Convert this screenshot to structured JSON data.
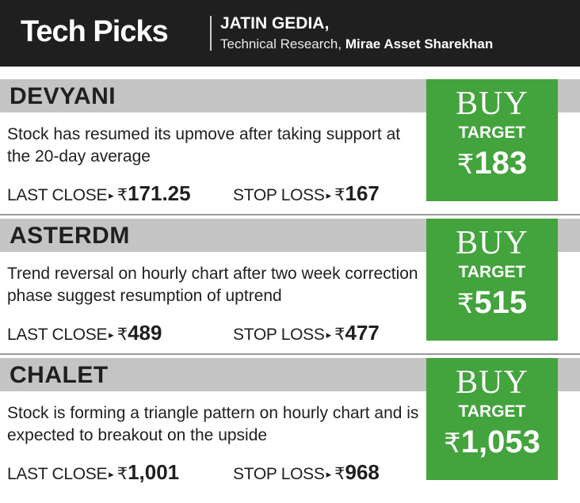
{
  "header": {
    "brand": "Tech Picks",
    "analyst_name": "JATIN GEDIA,",
    "analyst_role": "Technical  Research, ",
    "analyst_org": "Mirae Asset Sharekhan"
  },
  "labels": {
    "last_close": "LAST CLOSE",
    "stop_loss": "STOP LOSS",
    "buy": "BUY",
    "target": "TARGET",
    "rupee": "₹",
    "arrow": "▸"
  },
  "picks": [
    {
      "stock": "DEVYANI",
      "description": "Stock has resumed its upmove after taking support at the 20-day average",
      "last_close": "171.25",
      "stop_loss": "167",
      "target": "183"
    },
    {
      "stock": "ASTERDM",
      "description": "Trend reversal on hourly chart after two week correction phase suggest resumption of uptrend",
      "last_close": "489",
      "stop_loss": "477",
      "target": "515"
    },
    {
      "stock": "CHALET",
      "description": "Stock is forming a triangle pattern on hourly chart and is expected to breakout on the upside",
      "last_close": "1,001",
      "stop_loss": "968",
      "target": "1,053"
    }
  ],
  "colors": {
    "header_bg": "#1f1f1f",
    "stock_bar": "#c4c4c4",
    "target_box": "#43a33d"
  }
}
